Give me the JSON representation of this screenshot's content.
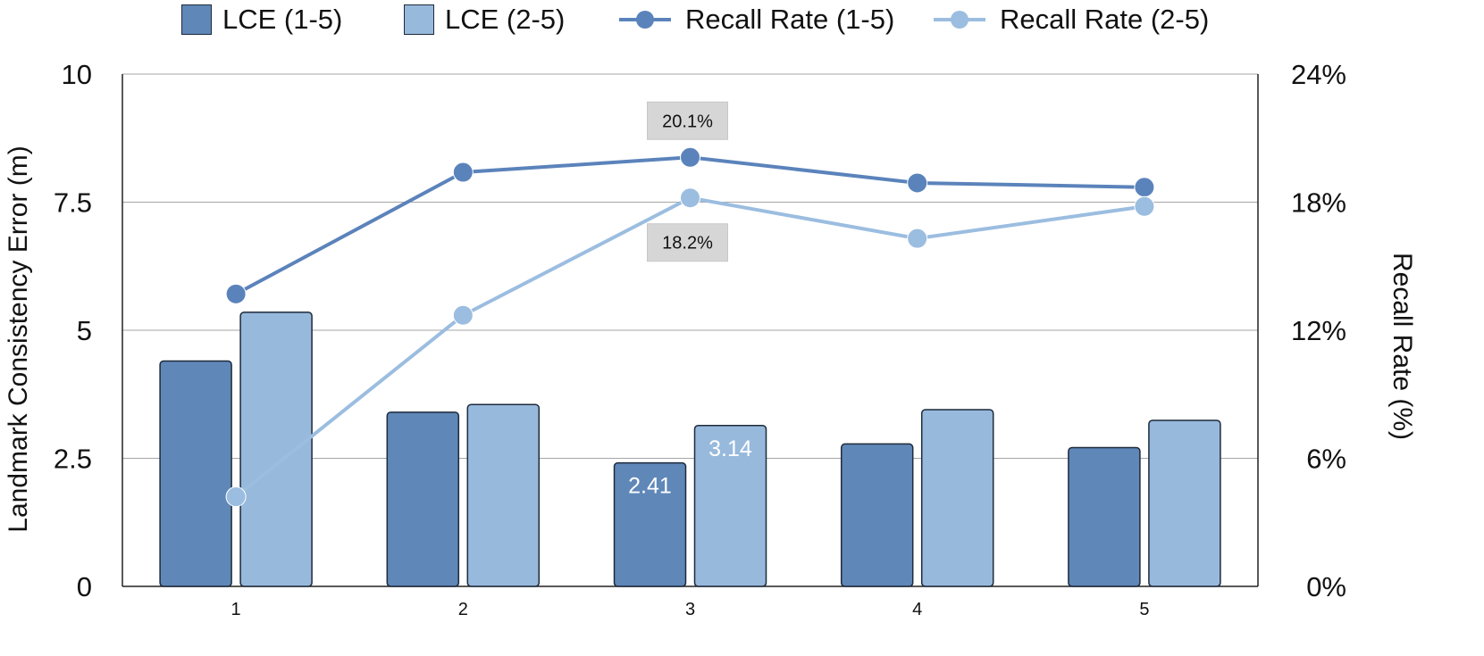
{
  "legend": {
    "lce_1_5": "LCE (1-5)",
    "lce_2_5": "LCE (2-5)",
    "recall_1_5": "Recall Rate (1-5)",
    "recall_2_5": "Recall Rate (2-5)"
  },
  "colors": {
    "dark_blue": "#5f87b8",
    "light_blue": "#97b9dc",
    "line_dark": "#5b83bb",
    "line_light": "#9bbde0",
    "annotation_box": "#d6d6d6",
    "grid": "#a6a6a6"
  },
  "chart_data": {
    "type": "bar",
    "categories": [
      "1",
      "2",
      "3",
      "4",
      "5"
    ],
    "series": [
      {
        "name": "LCE (1-5)",
        "kind": "bar",
        "axis": "left",
        "values": [
          4.4,
          3.4,
          2.41,
          2.78,
          2.71
        ]
      },
      {
        "name": "LCE (2-5)",
        "kind": "bar",
        "axis": "left",
        "values": [
          5.35,
          3.55,
          3.14,
          3.45,
          3.24
        ]
      },
      {
        "name": "Recall Rate (1-5)",
        "kind": "line",
        "axis": "right",
        "values": [
          13.7,
          19.4,
          20.1,
          18.9,
          18.7
        ]
      },
      {
        "name": "Recall Rate (2-5)",
        "kind": "line",
        "axis": "right",
        "values": [
          4.2,
          12.7,
          18.2,
          16.3,
          17.8
        ]
      }
    ],
    "ylabel": "Landmark Consistency Error (m)",
    "ylabel_right": "Recall Rate (%)",
    "ylim": [
      0,
      10
    ],
    "ylim_right": [
      0,
      24
    ],
    "yticks": [
      "0",
      "2.5",
      "5",
      "7.5",
      "10"
    ],
    "yticks_right": [
      "0%",
      "6%",
      "12%",
      "18%",
      "24%"
    ],
    "data_labels": [
      {
        "series": "LCE (1-5)",
        "category": "3",
        "text": "2.41"
      },
      {
        "series": "LCE (2-5)",
        "category": "3",
        "text": "3.14"
      }
    ],
    "annotations": [
      {
        "series": "Recall Rate (1-5)",
        "category": "3",
        "text": "20.1%"
      },
      {
        "series": "Recall Rate (2-5)",
        "category": "3",
        "text": "18.2%"
      }
    ],
    "grid": true,
    "legend_position": "top"
  }
}
